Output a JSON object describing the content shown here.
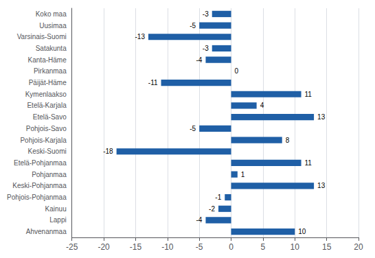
{
  "chart_data": {
    "type": "bar",
    "orientation": "horizontal",
    "categories": [
      "Koko maa",
      "Uusimaa",
      "Varsinais-Suomi",
      "Satakunta",
      "Kanta-Häme",
      "Pirkanmaa",
      "Päijät-Häme",
      "Kymenlaakso",
      "Etelä-Karjala",
      "Etelä-Savo",
      "Pohjois-Savo",
      "Pohjois-Karjala",
      "Keski-Suomi",
      "Etelä-Pohjanmaa",
      "Pohjanmaa",
      "Keski-Pohjanmaa",
      "Pohjois-Pohjanmaa",
      "Kainuu",
      "Lappi",
      "Ahvenanmaa"
    ],
    "values": [
      -3,
      -5,
      -13,
      -3,
      -4,
      0,
      -11,
      11,
      4,
      13,
      -5,
      8,
      -18,
      11,
      1,
      13,
      -1,
      -2,
      -4,
      10
    ],
    "color": "#1F5FA6",
    "xlim": [
      -25,
      20
    ],
    "xticks": [
      -25,
      -20,
      -15,
      -10,
      -5,
      0,
      5,
      10,
      15,
      20
    ],
    "grid": true,
    "data_labels": true
  }
}
